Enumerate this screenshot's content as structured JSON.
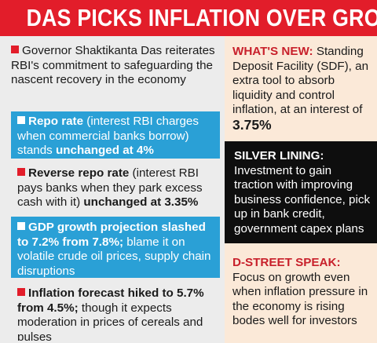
{
  "title": "DAS PICKS INFLATION OVER GROWTH",
  "left_items": [
    {
      "pre": "",
      "bold": "",
      "text": "Governor Shaktikanta Das reiterates RBI's commitment to safeguarding the nascent recovery in the economy",
      "post_bold": ""
    },
    {
      "bold": "Repo rate",
      "text": " (interest RBI charges when commercial banks borrow) stands ",
      "post_bold": "unchanged at 4%"
    },
    {
      "bold": "Reverse repo rate",
      "text": " (interest RBI pays banks when they park excess cash with it) ",
      "post_bold": "unchanged at 3.35%"
    },
    {
      "bold": "GDP growth projection slashed to 7.2% from 7.8%;",
      "text": " blame it on volatile crude oil prices, supply chain disruptions",
      "post_bold": ""
    },
    {
      "bold": "Inflation forecast hiked to 5.7% from 4.5%;",
      "text": " though it expects moderation in prices of cereals and pulses",
      "post_bold": ""
    }
  ],
  "right_items": [
    {
      "heading": "WHAT'S NEW:",
      "text": " Standing Deposit Facility (SDF), an extra tool to absorb liquidity and control inflation, at an interest of ",
      "highlight": "3.75%"
    },
    {
      "heading": "SILVER LINING:",
      "text": " Investment to gain traction with improving business confidence, pick up in bank credit, government capex plans"
    },
    {
      "heading": "D-STREET SPEAK:",
      "text": " Focus on growth even when inflation pressure in the economy is rising bodes well for investors"
    }
  ],
  "colors": {
    "header_red": "#e21d2a",
    "blue": "#2aa0d6",
    "light_gray": "#ececec",
    "peach": "#fbe9d8",
    "black": "#0e0e0e"
  }
}
